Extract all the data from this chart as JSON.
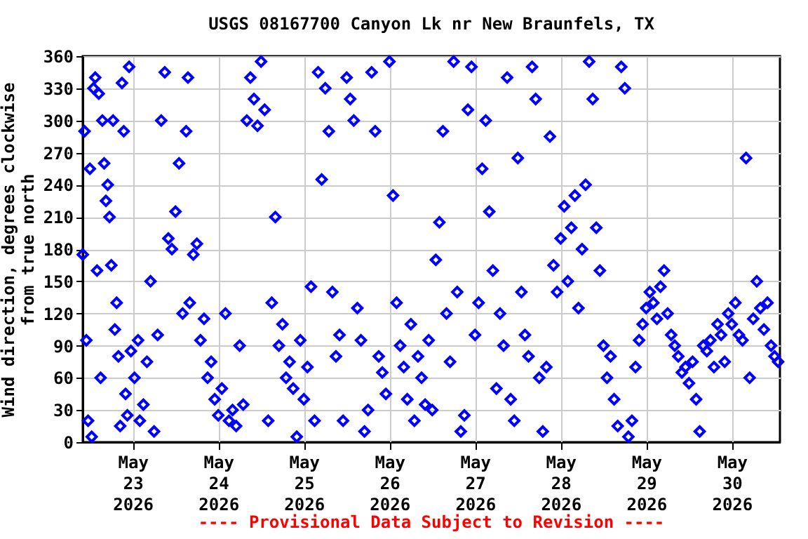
{
  "chart_data": {
    "type": "scatter",
    "title": "USGS 08167700 Canyon Lk nr New Braunfels, TX",
    "ylabel": "Wind direction, degrees clockwise from true north",
    "annotations": [
      "---- Provisional Data Subject to Revision ----"
    ],
    "xlim": [
      "2026-05-22T10:00",
      "2026-05-30T13:30"
    ],
    "xticks": [
      {
        "value": "2026-05-23T00:00",
        "label": "May 23 2026"
      },
      {
        "value": "2026-05-24T00:00",
        "label": "May 24 2026"
      },
      {
        "value": "2026-05-25T00:00",
        "label": "May 25 2026"
      },
      {
        "value": "2026-05-26T00:00",
        "label": "May 26 2026"
      },
      {
        "value": "2026-05-27T00:00",
        "label": "May 27 2026"
      },
      {
        "value": "2026-05-28T00:00",
        "label": "May 28 2026"
      },
      {
        "value": "2026-05-29T00:00",
        "label": "May 29 2026"
      },
      {
        "value": "2026-05-30T00:00",
        "label": "May 30 2026"
      }
    ],
    "ylim": [
      0,
      360
    ],
    "yticks": [
      0,
      30,
      60,
      90,
      120,
      150,
      180,
      210,
      240,
      270,
      300,
      330,
      360
    ],
    "grid": true,
    "marker": "diamond",
    "legend": false,
    "series": [
      {
        "color": "#0000ff",
        "x": [
          "2026-05-22T10:00",
          "2026-05-22T10:30",
          "2026-05-22T11:00",
          "2026-05-22T11:30",
          "2026-05-22T12:00",
          "2026-05-22T12:30",
          "2026-05-22T13:00",
          "2026-05-22T13:30",
          "2026-05-22T14:00",
          "2026-05-22T14:30",
          "2026-05-22T15:00",
          "2026-05-22T15:30",
          "2026-05-22T16:00",
          "2026-05-22T16:30",
          "2026-05-22T17:00",
          "2026-05-22T17:30",
          "2026-05-22T18:00",
          "2026-05-22T18:30",
          "2026-05-22T19:00",
          "2026-05-22T19:30",
          "2026-05-22T20:00",
          "2026-05-22T20:30",
          "2026-05-22T21:00",
          "2026-05-22T21:30",
          "2026-05-22T22:00",
          "2026-05-22T22:30",
          "2026-05-22T23:00",
          "2026-05-22T23:30",
          "2026-05-23T00:30",
          "2026-05-23T01:30",
          "2026-05-23T02:00",
          "2026-05-23T03:00",
          "2026-05-23T04:00",
          "2026-05-23T05:00",
          "2026-05-23T06:00",
          "2026-05-23T07:00",
          "2026-05-23T08:00",
          "2026-05-23T09:00",
          "2026-05-23T10:00",
          "2026-05-23T11:00",
          "2026-05-23T12:00",
          "2026-05-23T13:00",
          "2026-05-23T14:00",
          "2026-05-23T15:00",
          "2026-05-23T15:30",
          "2026-05-23T16:00",
          "2026-05-23T17:00",
          "2026-05-23T18:00",
          "2026-05-23T19:00",
          "2026-05-23T20:00",
          "2026-05-23T21:00",
          "2026-05-23T22:00",
          "2026-05-23T23:00",
          "2026-05-24T00:00",
          "2026-05-24T01:00",
          "2026-05-24T02:00",
          "2026-05-24T03:00",
          "2026-05-24T04:00",
          "2026-05-24T05:00",
          "2026-05-24T06:00",
          "2026-05-24T07:00",
          "2026-05-24T08:00",
          "2026-05-24T09:00",
          "2026-05-24T10:00",
          "2026-05-24T11:00",
          "2026-05-24T12:00",
          "2026-05-24T13:00",
          "2026-05-24T14:00",
          "2026-05-24T15:00",
          "2026-05-24T16:00",
          "2026-05-24T17:00",
          "2026-05-24T18:00",
          "2026-05-24T19:00",
          "2026-05-24T20:00",
          "2026-05-24T21:00",
          "2026-05-24T22:00",
          "2026-05-24T23:00",
          "2026-05-25T00:00",
          "2026-05-25T01:00",
          "2026-05-25T02:00",
          "2026-05-25T03:00",
          "2026-05-25T04:00",
          "2026-05-25T05:00",
          "2026-05-25T06:00",
          "2026-05-25T07:00",
          "2026-05-25T08:00",
          "2026-05-25T09:00",
          "2026-05-25T10:00",
          "2026-05-25T11:00",
          "2026-05-25T12:00",
          "2026-05-25T13:00",
          "2026-05-25T14:00",
          "2026-05-25T15:00",
          "2026-05-25T16:00",
          "2026-05-25T17:00",
          "2026-05-25T18:00",
          "2026-05-25T19:00",
          "2026-05-25T20:00",
          "2026-05-25T21:00",
          "2026-05-25T22:00",
          "2026-05-25T23:00",
          "2026-05-26T00:00",
          "2026-05-26T01:00",
          "2026-05-26T02:00",
          "2026-05-26T03:00",
          "2026-05-26T04:00",
          "2026-05-26T05:00",
          "2026-05-26T06:00",
          "2026-05-26T07:00",
          "2026-05-26T08:00",
          "2026-05-26T09:00",
          "2026-05-26T10:00",
          "2026-05-26T11:00",
          "2026-05-26T12:00",
          "2026-05-26T13:00",
          "2026-05-26T14:00",
          "2026-05-26T15:00",
          "2026-05-26T16:00",
          "2026-05-26T17:00",
          "2026-05-26T18:00",
          "2026-05-26T19:00",
          "2026-05-26T20:00",
          "2026-05-26T21:00",
          "2026-05-26T22:00",
          "2026-05-26T23:00",
          "2026-05-27T00:00",
          "2026-05-27T01:00",
          "2026-05-27T02:00",
          "2026-05-27T03:00",
          "2026-05-27T04:00",
          "2026-05-27T05:00",
          "2026-05-27T06:00",
          "2026-05-27T07:00",
          "2026-05-27T08:00",
          "2026-05-27T09:00",
          "2026-05-27T10:00",
          "2026-05-27T11:00",
          "2026-05-27T12:00",
          "2026-05-27T13:00",
          "2026-05-27T14:00",
          "2026-05-27T15:00",
          "2026-05-27T16:00",
          "2026-05-27T17:00",
          "2026-05-27T18:00",
          "2026-05-27T19:00",
          "2026-05-27T20:00",
          "2026-05-27T21:00",
          "2026-05-27T22:00",
          "2026-05-27T23:00",
          "2026-05-28T00:00",
          "2026-05-28T01:00",
          "2026-05-28T02:00",
          "2026-05-28T03:00",
          "2026-05-28T04:00",
          "2026-05-28T05:00",
          "2026-05-28T06:00",
          "2026-05-28T07:00",
          "2026-05-28T08:00",
          "2026-05-28T09:00",
          "2026-05-28T10:00",
          "2026-05-28T11:00",
          "2026-05-28T12:00",
          "2026-05-28T13:00",
          "2026-05-28T14:00",
          "2026-05-28T15:00",
          "2026-05-28T16:00",
          "2026-05-28T17:00",
          "2026-05-28T18:00",
          "2026-05-28T19:00",
          "2026-05-28T20:00",
          "2026-05-28T21:00",
          "2026-05-28T22:00",
          "2026-05-28T23:00",
          "2026-05-29T00:00",
          "2026-05-29T01:00",
          "2026-05-29T02:00",
          "2026-05-29T03:00",
          "2026-05-29T04:00",
          "2026-05-29T05:00",
          "2026-05-29T06:00",
          "2026-05-29T07:00",
          "2026-05-29T08:00",
          "2026-05-29T09:00",
          "2026-05-29T10:00",
          "2026-05-29T11:00",
          "2026-05-29T12:00",
          "2026-05-29T13:00",
          "2026-05-29T14:00",
          "2026-05-29T15:00",
          "2026-05-29T16:00",
          "2026-05-29T17:00",
          "2026-05-29T18:00",
          "2026-05-29T19:00",
          "2026-05-29T20:00",
          "2026-05-29T21:00",
          "2026-05-29T22:00",
          "2026-05-29T23:00",
          "2026-05-30T00:00",
          "2026-05-30T01:00",
          "2026-05-30T02:00",
          "2026-05-30T03:00",
          "2026-05-30T04:00",
          "2026-05-30T05:00",
          "2026-05-30T06:00",
          "2026-05-30T07:00",
          "2026-05-30T08:00",
          "2026-05-30T09:00",
          "2026-05-30T10:00",
          "2026-05-30T11:00",
          "2026-05-30T12:00",
          "2026-05-30T13:00"
        ],
        "values": [
          175,
          290,
          95,
          20,
          255,
          5,
          330,
          340,
          160,
          325,
          60,
          300,
          260,
          225,
          240,
          210,
          165,
          300,
          105,
          130,
          80,
          15,
          335,
          290,
          45,
          25,
          350,
          85,
          60,
          95,
          20,
          35,
          75,
          150,
          10,
          100,
          300,
          345,
          190,
          180,
          215,
          260,
          120,
          290,
          340,
          130,
          175,
          185,
          95,
          115,
          60,
          75,
          40,
          25,
          50,
          120,
          20,
          30,
          15,
          90,
          35,
          300,
          340,
          320,
          295,
          355,
          310,
          20,
          130,
          210,
          90,
          110,
          60,
          75,
          50,
          5,
          95,
          40,
          70,
          145,
          20,
          345,
          245,
          330,
          290,
          140,
          80,
          100,
          20,
          340,
          320,
          300,
          125,
          95,
          10,
          30,
          345,
          290,
          80,
          65,
          45,
          355,
          230,
          130,
          90,
          70,
          40,
          110,
          20,
          80,
          60,
          35,
          95,
          30,
          170,
          205,
          290,
          120,
          75,
          355,
          140,
          10,
          25,
          310,
          350,
          100,
          130,
          255,
          300,
          215,
          160,
          50,
          120,
          90,
          340,
          40,
          20,
          265,
          140,
          100,
          80,
          350,
          320,
          60,
          10,
          70,
          285,
          165,
          140,
          190,
          220,
          150,
          200,
          230,
          125,
          180,
          240,
          355,
          320,
          200,
          160,
          90,
          60,
          80,
          40,
          15,
          350,
          330,
          5,
          20,
          70,
          95,
          110,
          125,
          140,
          130,
          115,
          145,
          160,
          120,
          100,
          90,
          80,
          65,
          70,
          55,
          75,
          40,
          10,
          90,
          85,
          95,
          70,
          110,
          100,
          75,
          120,
          110,
          130,
          100,
          95,
          265,
          60,
          115,
          150,
          125,
          105,
          130,
          90,
          80,
          75
        ]
      }
    ]
  }
}
